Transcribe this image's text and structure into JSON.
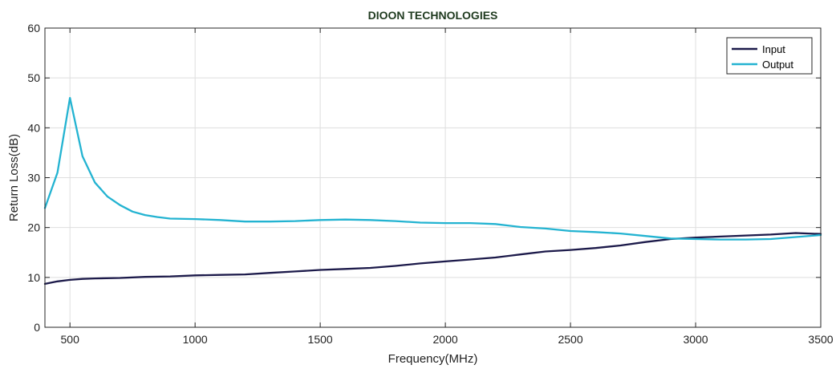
{
  "chart_data": {
    "type": "line",
    "title": "DIOON TECHNOLOGIES",
    "xlabel": "Frequency(MHz)",
    "ylabel": "Return Loss(dB)",
    "xlim": [
      400,
      3500
    ],
    "ylim": [
      0,
      60
    ],
    "xticks": [
      500,
      1000,
      1500,
      2000,
      2500,
      3000,
      3500
    ],
    "yticks": [
      0,
      10,
      20,
      30,
      40,
      50,
      60
    ],
    "grid": true,
    "legend": "top-right",
    "series": [
      {
        "name": "Input",
        "color": "#1c1a4a",
        "x": [
          400,
          450,
          500,
          550,
          600,
          700,
          800,
          900,
          1000,
          1100,
          1200,
          1300,
          1400,
          1500,
          1600,
          1700,
          1800,
          1900,
          2000,
          2100,
          2200,
          2300,
          2400,
          2500,
          2600,
          2700,
          2800,
          2900,
          3000,
          3100,
          3200,
          3300,
          3400,
          3500
        ],
        "y": [
          8.7,
          9.2,
          9.5,
          9.7,
          9.8,
          9.9,
          10.1,
          10.2,
          10.4,
          10.5,
          10.6,
          10.9,
          11.2,
          11.5,
          11.7,
          11.9,
          12.3,
          12.8,
          13.2,
          13.6,
          14.0,
          14.6,
          15.2,
          15.5,
          15.9,
          16.4,
          17.1,
          17.7,
          18.0,
          18.2,
          18.4,
          18.6,
          18.9,
          18.7
        ]
      },
      {
        "name": "Output",
        "color": "#23b3d1",
        "x": [
          400,
          450,
          500,
          550,
          600,
          650,
          700,
          750,
          800,
          850,
          900,
          1000,
          1100,
          1200,
          1300,
          1400,
          1500,
          1600,
          1700,
          1800,
          1900,
          2000,
          2100,
          2200,
          2300,
          2400,
          2500,
          2600,
          2700,
          2800,
          2900,
          3000,
          3100,
          3200,
          3300,
          3400,
          3500
        ],
        "y": [
          23.9,
          31.0,
          46.0,
          34.3,
          29.0,
          26.2,
          24.5,
          23.2,
          22.5,
          22.1,
          21.8,
          21.7,
          21.5,
          21.2,
          21.2,
          21.3,
          21.5,
          21.6,
          21.5,
          21.3,
          21.0,
          20.9,
          20.9,
          20.7,
          20.1,
          19.8,
          19.3,
          19.1,
          18.8,
          18.3,
          17.8,
          17.7,
          17.6,
          17.6,
          17.7,
          18.1,
          18.5
        ]
      }
    ]
  }
}
